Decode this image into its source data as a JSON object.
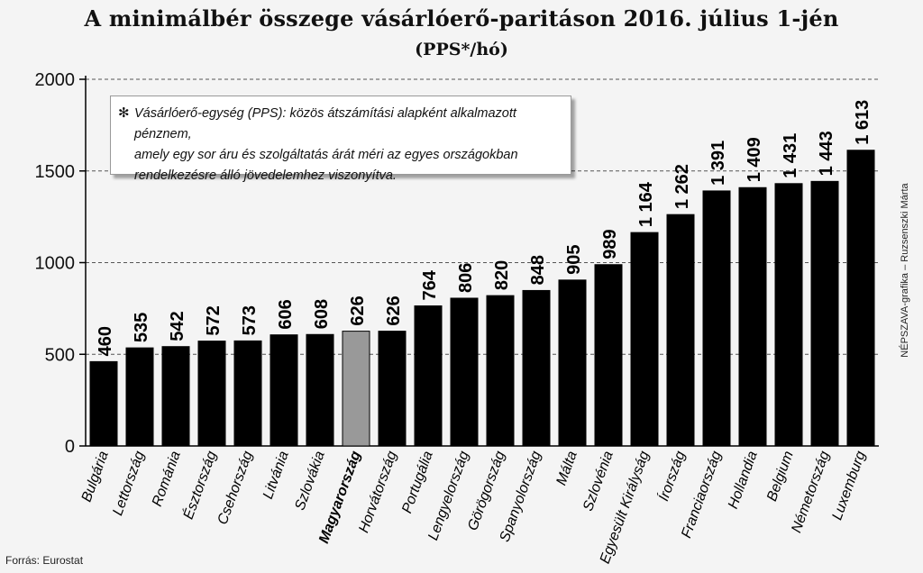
{
  "chart_data": {
    "type": "bar",
    "title": "A minimálbér összege vásárlóerő-paritáson 2016. július 1-jén",
    "subtitle": "(PPS*/hó)",
    "categories": [
      "Bulgária",
      "Lettország",
      "Románia",
      "Észtország",
      "Csehország",
      "Litvánia",
      "Szlovákia",
      "Magyarország",
      "Horvátország",
      "Portugália",
      "Lengyelország",
      "Görögország",
      "Spanyolország",
      "Málta",
      "Szlovénia",
      "Egyesült Királyság",
      "Írország",
      "Franciaország",
      "Hollandia",
      "Belgium",
      "Németország",
      "Luxemburg"
    ],
    "values": [
      460,
      535,
      542,
      572,
      573,
      606,
      608,
      626,
      626,
      764,
      806,
      820,
      848,
      905,
      989,
      1164,
      1262,
      1391,
      1409,
      1431,
      1443,
      1613
    ],
    "value_labels": [
      "460",
      "535",
      "542",
      "572",
      "573",
      "606",
      "608",
      "626",
      "626",
      "764",
      "806",
      "820",
      "848",
      "905",
      "989",
      "1 164",
      "1 262",
      "1 391",
      "1 409",
      "1 431",
      "1 443",
      "1 613"
    ],
    "highlight_category": "Magyarország",
    "yticks": [
      "0",
      "500",
      "1000",
      "1500",
      "2000"
    ],
    "ylim": [
      0,
      2000
    ],
    "grid": true,
    "xlabel": "",
    "ylabel": "",
    "colors": {
      "bar": "#000000",
      "highlight": "#999999",
      "grid": "#555555"
    }
  },
  "note": {
    "marker": "✻",
    "lines": [
      "Vásárlóerő-egység (PPS): közös átszámítási alapként alkalmazott pénznem,",
      "amely egy sor áru és szolgáltatás árát méri az egyes országokban",
      "rendelkezésre álló jövedelemhez viszonyítva."
    ]
  },
  "source": "Forrás: Eurostat",
  "credit": "NÉPSZAVA-grafika – Ruzsenszki Márta"
}
